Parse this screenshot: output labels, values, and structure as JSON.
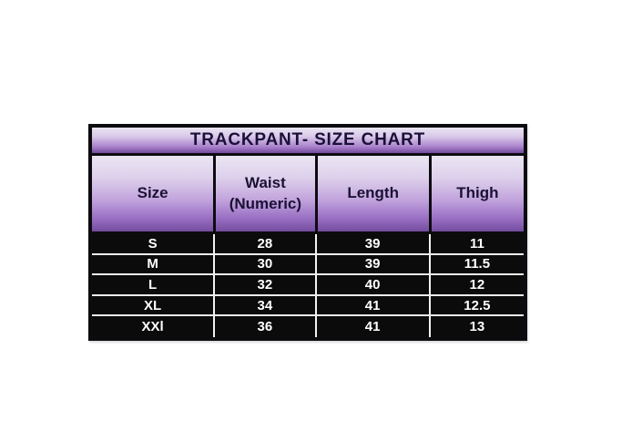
{
  "table": {
    "title": "TRACKPANT- SIZE CHART",
    "header": {
      "size": "Size",
      "waist_line1": "Waist",
      "waist_line2": "(Numeric)",
      "length": "Length",
      "thigh": "Thigh"
    },
    "rows": [
      {
        "size": "S",
        "waist": "28",
        "length": "39",
        "thigh": "11"
      },
      {
        "size": "M",
        "waist": "30",
        "length": "39",
        "thigh": "11.5"
      },
      {
        "size": "L",
        "waist": "32",
        "length": "40",
        "thigh": "12"
      },
      {
        "size": "XL",
        "waist": "34",
        "length": "41",
        "thigh": "12.5"
      },
      {
        "size": "XXl",
        "waist": "36",
        "length": "41",
        "thigh": "13"
      }
    ],
    "colors": {
      "purple_gradient_top": "#ebe6f3",
      "purple_gradient_bottom": "#714b9e",
      "header_text": "#1b1134",
      "data_background": "#0b0b0b",
      "data_text": "#ffffff",
      "outer_border": "#0d0b10",
      "grid_line": "#f2f2f2",
      "page_background": "#ffffff"
    }
  },
  "chart_data": {
    "type": "table",
    "title": "TRACKPANT- SIZE CHART",
    "columns": [
      "Size",
      "Waist (Numeric)",
      "Length",
      "Thigh"
    ],
    "rows": [
      [
        "S",
        28,
        39,
        11
      ],
      [
        "M",
        30,
        39,
        11.5
      ],
      [
        "L",
        32,
        40,
        12
      ],
      [
        "XL",
        34,
        41,
        12.5
      ],
      [
        "XXl",
        36,
        41,
        13
      ]
    ],
    "layout": {
      "header_fill": "purple vertical gradient light-to-dark",
      "body_fill": "black with white bold text",
      "grid": "on"
    }
  }
}
